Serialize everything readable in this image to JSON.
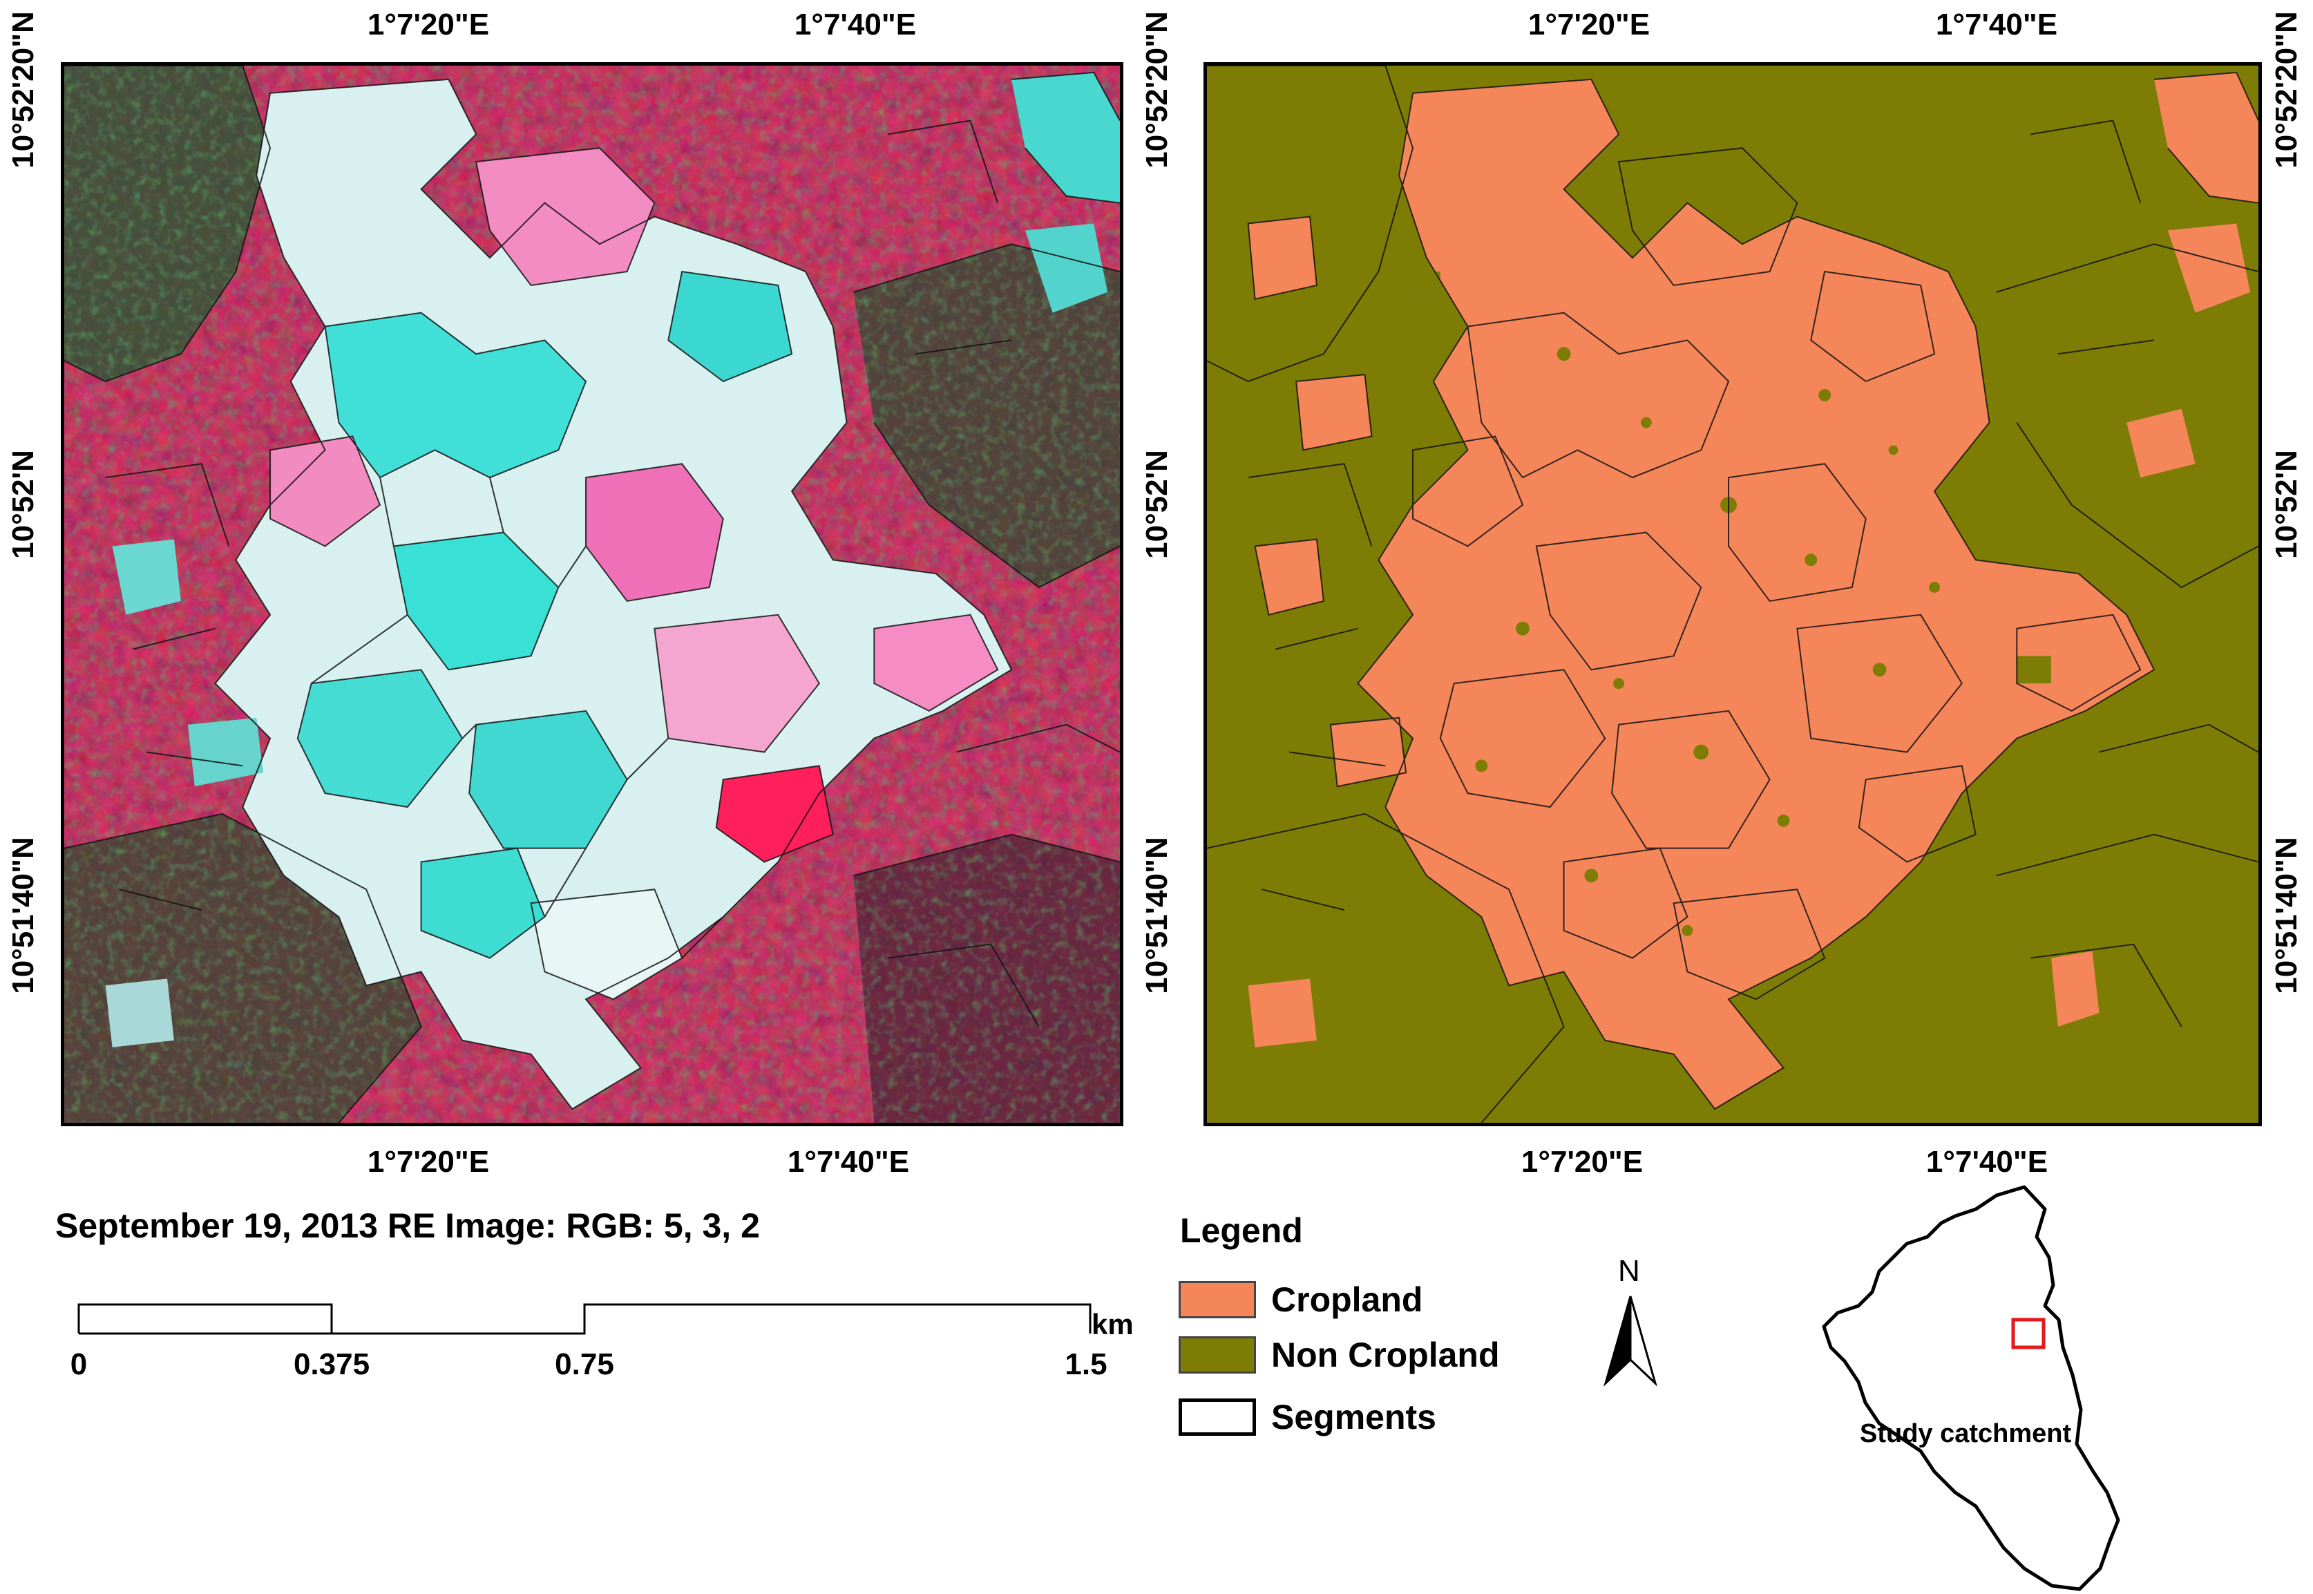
{
  "left_map": {
    "top_ticks": [
      "1°7'20\"E",
      "1°7'40\"E"
    ],
    "bottom_ticks": [
      "1°7'20\"E",
      "1°7'40\"E"
    ],
    "left_ticks": [
      "10°52'20\"N",
      "10°52'N",
      "10°51'40\"N"
    ],
    "right_ticks": [
      "10°52'20\"N",
      "10°52'N",
      "10°51'40\"N"
    ],
    "caption": "September 19, 2013 RE Image: RGB: 5, 3, 2"
  },
  "right_map": {
    "top_ticks": [
      "1°7'20\"E",
      "1°7'40\"E"
    ],
    "bottom_ticks": [
      "1°7'20\"E",
      "1°7'40\"E"
    ],
    "right_ticks": [
      "10°52'20\"N",
      "10°52'N",
      "10°51'40\"N"
    ]
  },
  "scale_bar": {
    "labels": [
      "0",
      "0.375",
      "0.75",
      "1.5"
    ],
    "unit": "km"
  },
  "legend": {
    "title": "Legend",
    "items": [
      {
        "label": "Cropland",
        "color": "#f5865a"
      },
      {
        "label": "Non Cropland",
        "color": "#7d7d06"
      },
      {
        "label": "Segments",
        "color": "#ffffff"
      }
    ]
  },
  "north_arrow": {
    "label": "N"
  },
  "inset": {
    "label": "Study catchment"
  },
  "colors": {
    "imagery_red": "#d2143c",
    "imagery_cyan": "#3ce8dc",
    "imagery_pink": "#f0a0c8",
    "imagery_green": "#2f7a3a",
    "cropland": "#f5865a",
    "non_cropland": "#7d7d06"
  }
}
